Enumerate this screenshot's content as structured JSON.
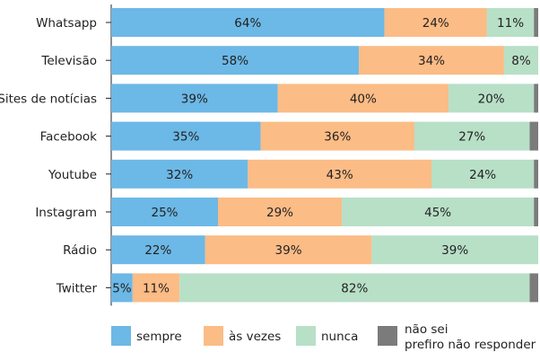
{
  "chart_data": {
    "type": "bar",
    "orientation": "horizontal",
    "stacked": true,
    "categories": [
      "Whatsapp",
      "Televisão",
      "Sites de notícias",
      "Facebook",
      "Youtube",
      "Instagram",
      "Rádio",
      "Twitter"
    ],
    "series": [
      {
        "name": "sempre",
        "color": "#6cb8e6",
        "values": [
          64,
          58,
          39,
          35,
          32,
          25,
          22,
          5
        ],
        "labels": [
          "64%",
          "58%",
          "39%",
          "35%",
          "32%",
          "25%",
          "22%",
          "5%"
        ]
      },
      {
        "name": "às vezes",
        "color": "#fbbc86",
        "values": [
          24,
          34,
          40,
          36,
          43,
          29,
          39,
          11
        ],
        "labels": [
          "24%",
          "34%",
          "40%",
          "36%",
          "43%",
          "29%",
          "39%",
          "11%"
        ]
      },
      {
        "name": "nunca",
        "color": "#b7e0c7",
        "values": [
          11,
          8,
          20,
          27,
          24,
          45,
          39,
          82
        ],
        "labels": [
          "11%",
          "8%",
          "20%",
          "27%",
          "24%",
          "45%",
          "39%",
          "82%"
        ]
      },
      {
        "name": "não sei\nprefiro não responder",
        "color": "#7b7b7b",
        "values": [
          1,
          0,
          1,
          2,
          1,
          1,
          0,
          2
        ],
        "labels": [
          "",
          "",
          "",
          "",
          "",
          "",
          "",
          ""
        ]
      }
    ],
    "xlim": [
      0,
      100
    ],
    "grid": false,
    "legend_position": "bottom"
  }
}
